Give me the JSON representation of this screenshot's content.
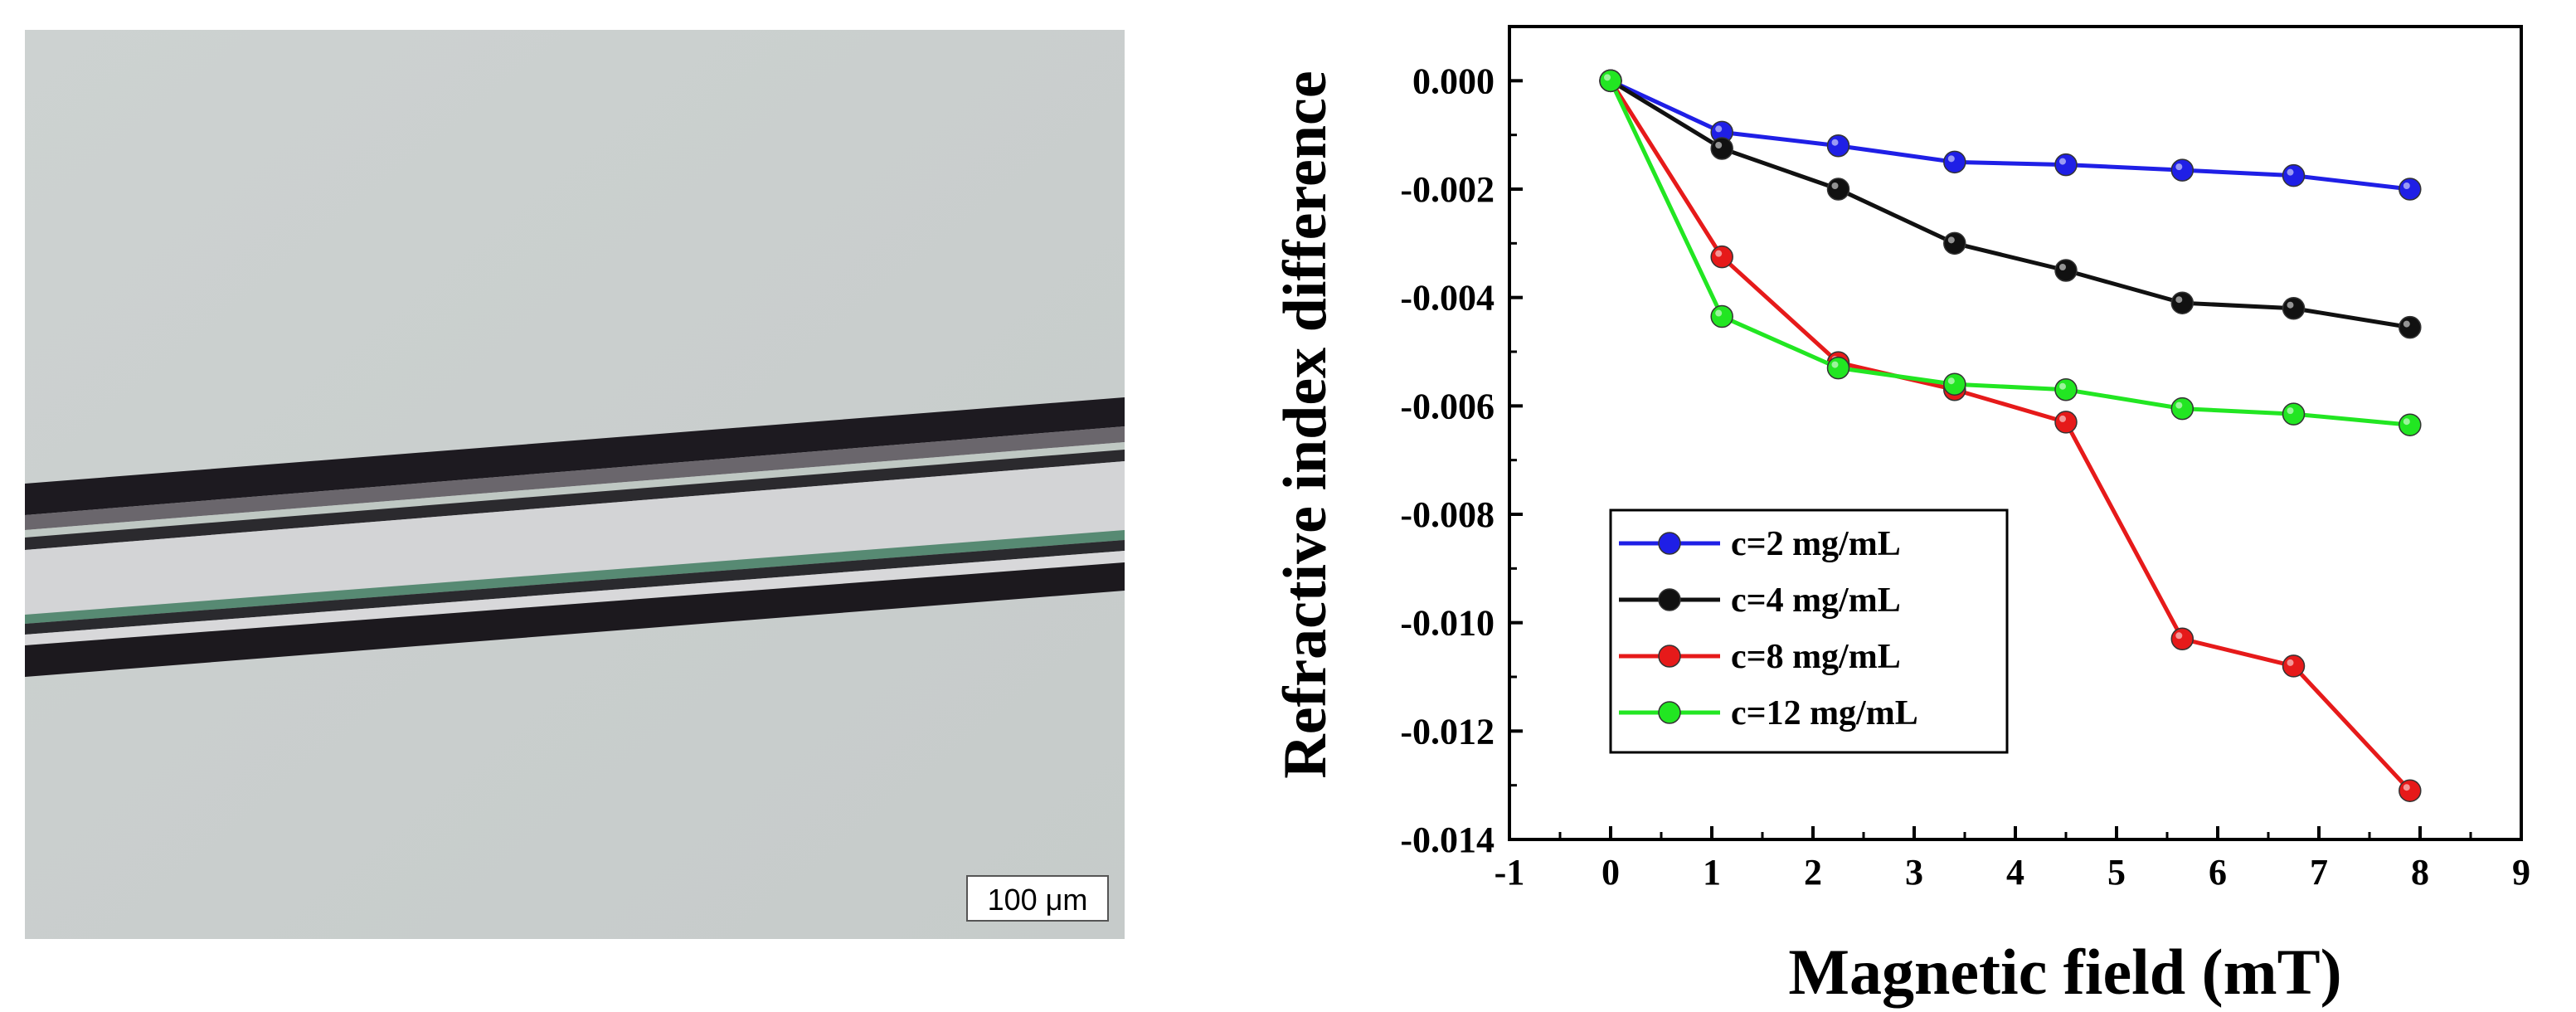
{
  "micrograph": {
    "scale_bar_label": "100 μm"
  },
  "chart_data": {
    "type": "line",
    "xlabel": "Magnetic field (mT)",
    "ylabel": "Refractive index difference",
    "xlim": [
      -1,
      9
    ],
    "ylim": [
      -0.014,
      0.001
    ],
    "x_ticks": [
      "-1",
      "0",
      "1",
      "2",
      "3",
      "4",
      "5",
      "6",
      "7",
      "8",
      "9"
    ],
    "y_ticks": [
      "0.000",
      "-0.002",
      "-0.004",
      "-0.006",
      "-0.008",
      "-0.010",
      "-0.012",
      "-0.014"
    ],
    "legend_position": "bottom-left",
    "grid": false,
    "series": [
      {
        "name": "c=2 mg/mL",
        "color": "#1f1fe6",
        "x": [
          0,
          1.1,
          2.25,
          3.4,
          4.5,
          5.65,
          6.75,
          7.9
        ],
        "y": [
          0.0,
          -0.00095,
          -0.0012,
          -0.0015,
          -0.00155,
          -0.00165,
          -0.00175,
          -0.002
        ]
      },
      {
        "name": "c=4 mg/mL",
        "color": "#111111",
        "x": [
          0,
          1.1,
          2.25,
          3.4,
          4.5,
          5.65,
          6.75,
          7.9
        ],
        "y": [
          0.0,
          -0.00125,
          -0.002,
          -0.003,
          -0.0035,
          -0.0041,
          -0.0042,
          -0.00455
        ]
      },
      {
        "name": "c=8 mg/mL",
        "color": "#e61a1a",
        "x": [
          0,
          1.1,
          2.25,
          3.4,
          4.5,
          5.65,
          6.75,
          7.9
        ],
        "y": [
          0.0,
          -0.00325,
          -0.0052,
          -0.0057,
          -0.0063,
          -0.0103,
          -0.0108,
          -0.0131
        ]
      },
      {
        "name": "c=12 mg/mL",
        "color": "#22e622",
        "x": [
          0,
          1.1,
          2.25,
          3.4,
          4.5,
          5.65,
          6.75,
          7.9
        ],
        "y": [
          0.0,
          -0.00435,
          -0.0053,
          -0.0056,
          -0.0057,
          -0.00605,
          -0.00615,
          -0.00635
        ]
      }
    ]
  }
}
